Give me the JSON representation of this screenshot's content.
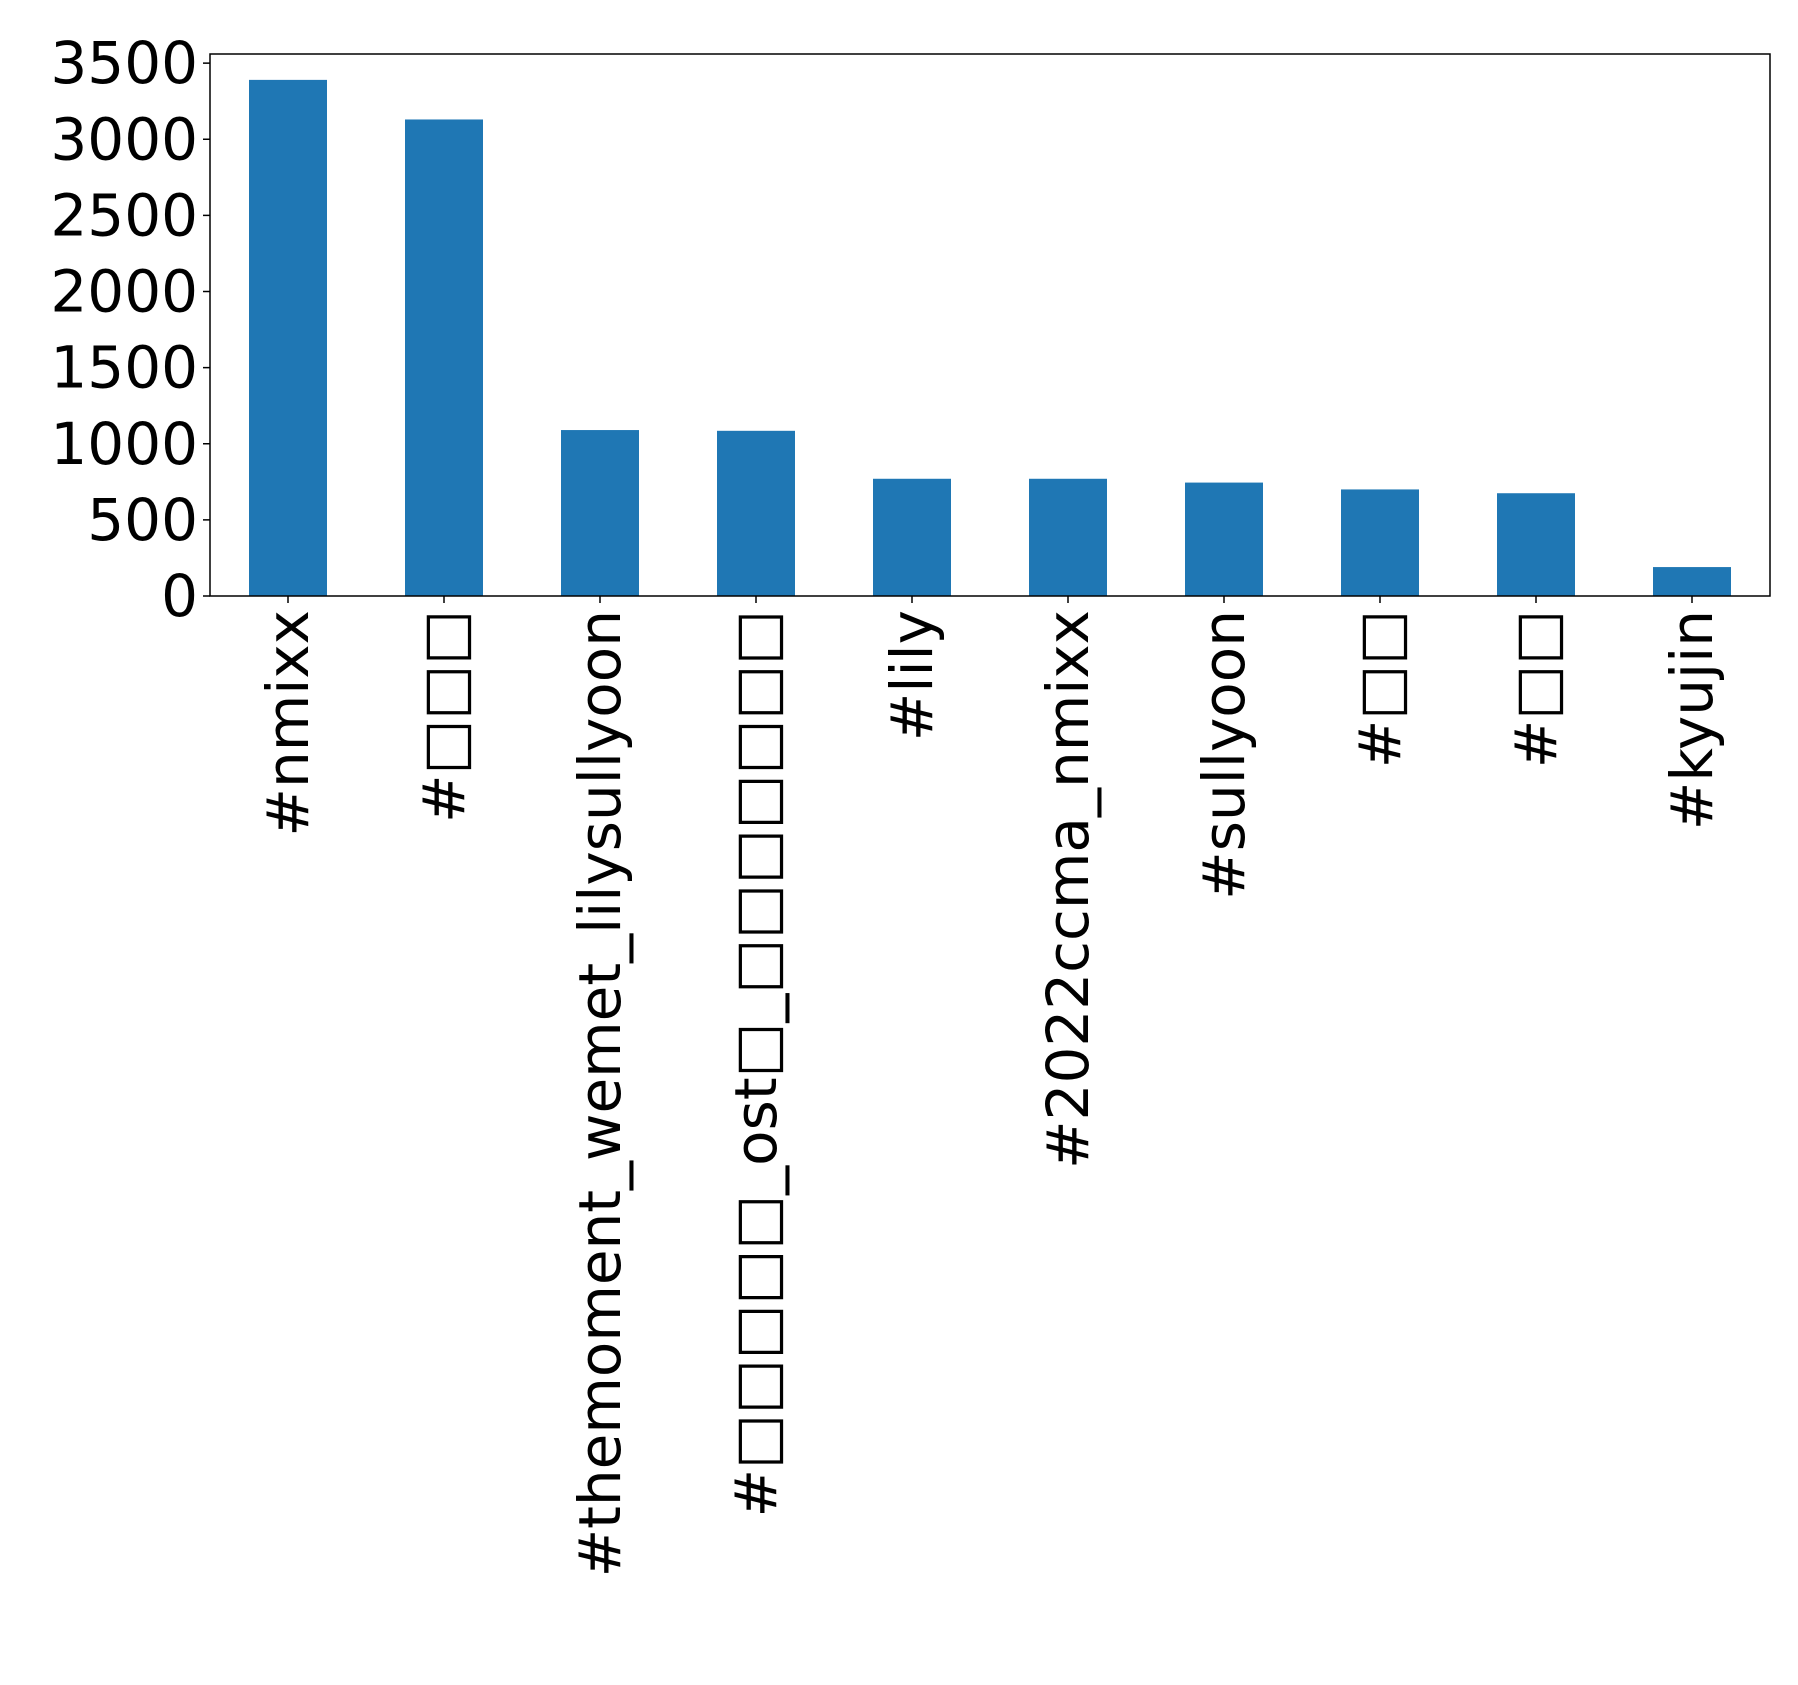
{
  "chart_data": {
    "type": "bar",
    "categories": [
      "#nmixx",
      "#□□□",
      "#themoment_wemet_lilysullyoon",
      "#□□□□□_ost□_□□□□□□□",
      "#lily",
      "#2022ccma_nmixx",
      "#sullyoon",
      "#□□",
      "#□□",
      "#kyujin"
    ],
    "values": [
      3390,
      3130,
      1090,
      1085,
      770,
      770,
      745,
      700,
      675,
      190
    ],
    "yticks": [
      0,
      500,
      1000,
      1500,
      2000,
      2500,
      3000,
      3500
    ],
    "ylim": [
      0,
      3560
    ],
    "grid": false,
    "legend": "none",
    "bar_color": "#1f77b4"
  }
}
